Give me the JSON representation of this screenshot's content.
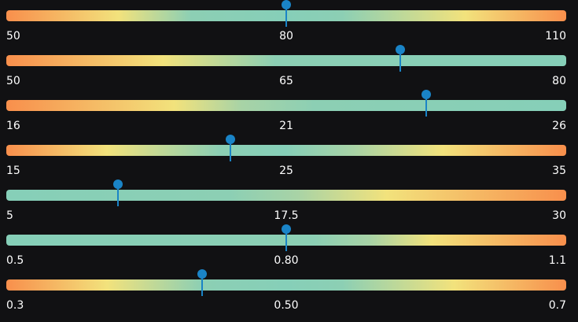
{
  "gauges": [
    {
      "min": "50",
      "mid": "80",
      "max": "110",
      "value": 80,
      "range_min": 50,
      "range_max": 110
    },
    {
      "min": "50",
      "mid": "65",
      "max": "80",
      "value": 71.1,
      "range_min": 50,
      "range_max": 80
    },
    {
      "min": "16",
      "mid": "21",
      "max": "26",
      "value": 23.5,
      "range_min": 16,
      "range_max": 26
    },
    {
      "min": "15",
      "mid": "25",
      "max": "35",
      "value": 23,
      "range_min": 15,
      "range_max": 35
    },
    {
      "min": "5",
      "mid": "17.5",
      "max": "30",
      "value": 10,
      "range_min": 5,
      "range_max": 30
    },
    {
      "min": "0.5",
      "mid": "0.80",
      "max": "1.1",
      "value": 0.8,
      "range_min": 0.5,
      "range_max": 1.1
    },
    {
      "min": "0.3",
      "mid": "0.50",
      "max": "0.7",
      "value": 0.44,
      "range_min": 0.3,
      "range_max": 0.7
    }
  ],
  "colors": {
    "low_high": "#f88f4c",
    "warning": "#f2e27c",
    "normal": "#86cfb8",
    "marker": "#1a84c7",
    "background": "#111113"
  }
}
